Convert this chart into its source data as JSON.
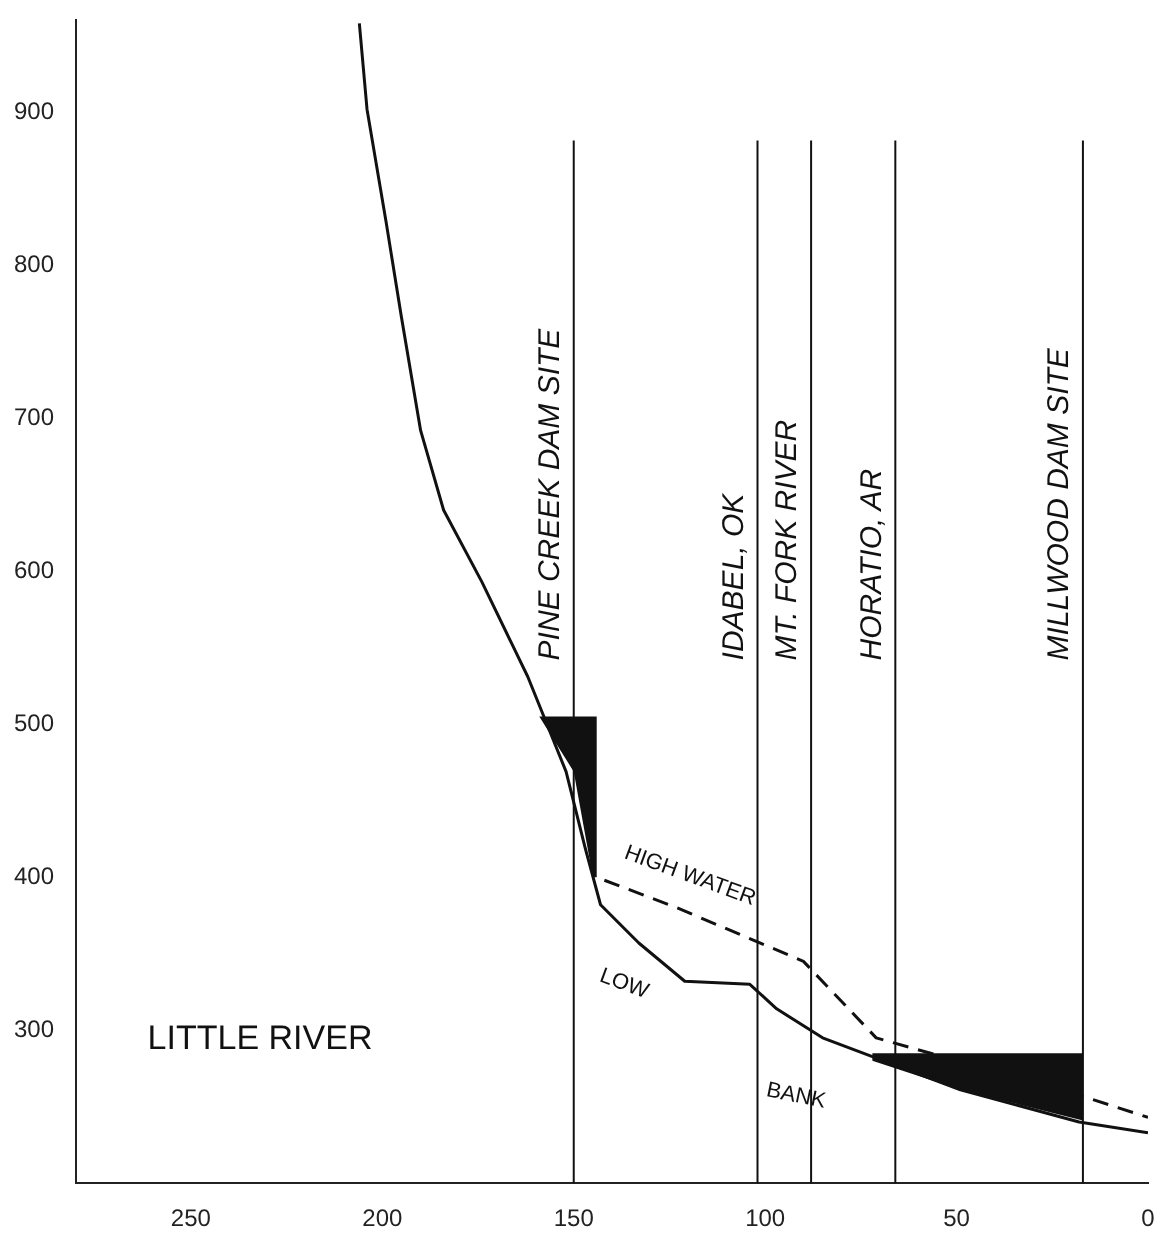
{
  "chart_data": {
    "type": "line",
    "xlim": [
      280,
      0
    ],
    "ylim": [
      200,
      960
    ],
    "xticks": [
      250,
      200,
      150,
      100,
      50,
      0
    ],
    "yticks": [
      300,
      400,
      500,
      600,
      700,
      800,
      900
    ],
    "grid": false,
    "legend": false,
    "marker": "none",
    "series": [
      {
        "color": "#111111",
        "x": [
          206,
          204,
          199,
          195,
          190,
          184,
          174,
          162,
          152,
          147,
          143,
          133,
          121,
          104,
          97,
          85,
          68,
          49,
          18,
          0
        ],
        "values": [
          958,
          902,
          828,
          766,
          692,
          640,
          593,
          531,
          469,
          419,
          382,
          357,
          332,
          330,
          314,
          295,
          279,
          261,
          240,
          233
        ]
      },
      {
        "type": "line",
        "color": "#111111",
        "line_style": "dashed",
        "x": [
          142,
          123,
          90,
          71,
          16,
          0
        ],
        "values": [
          398,
          380,
          345,
          295,
          256,
          243
        ]
      },
      {
        "type": "area",
        "color": "#111111",
        "x": [
          159,
          144,
          144,
          145,
          150,
          159
        ],
        "values": [
          505,
          505,
          400,
          400,
          469,
          505
        ]
      },
      {
        "type": "area",
        "color": "#111111",
        "x": [
          72,
          17,
          17,
          49,
          72
        ],
        "values": [
          285,
          285,
          241,
          261,
          280
        ]
      }
    ],
    "ref_lines": [
      {
        "axis": "x",
        "value": 150,
        "label": "PINE CREEK DAM SITE"
      },
      {
        "axis": "x",
        "value": 102,
        "label": "IDABEL, OK"
      },
      {
        "axis": "x",
        "value": 88,
        "label": "MT. FORK RIVER"
      },
      {
        "axis": "x",
        "value": 66,
        "label": "HORATIO, AR"
      },
      {
        "axis": "x",
        "value": 17,
        "label": "MILLWOOD DAM SITE"
      }
    ],
    "annotations": [
      "LITTLE RIVER",
      "HIGH WATER",
      "LOW",
      "BANK"
    ]
  }
}
